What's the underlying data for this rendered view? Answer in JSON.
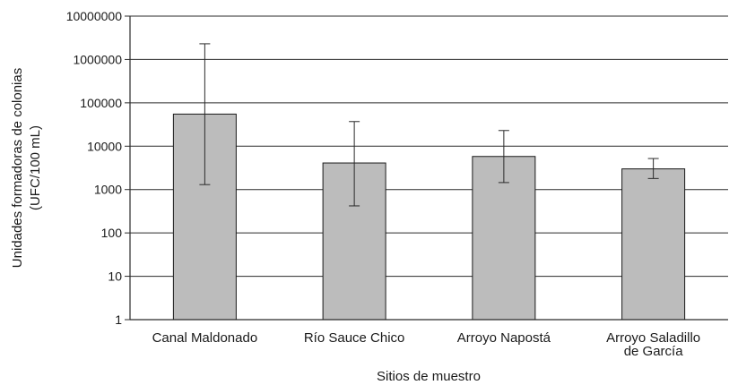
{
  "chart_data": {
    "type": "bar",
    "title": "",
    "xlabel": "Sitios de muestro",
    "ylabel_lines": [
      "Unidades formadoras de colonias",
      "(UFC/100 mL)"
    ],
    "yscale": "log",
    "ylim": [
      1,
      10000000
    ],
    "yticks": [
      1,
      10,
      100,
      1000,
      10000,
      100000,
      1000000,
      10000000
    ],
    "ytick_labels": [
      "1",
      "10",
      "100",
      "1000",
      "10000",
      "100000",
      "1000000",
      "10000000"
    ],
    "grid": "horizontal",
    "legend": "none",
    "bar_color": "#bcbcbc",
    "bar_edge_color": "#1a1a1a",
    "categories": [
      {
        "lines": [
          "Canal Maldonado"
        ],
        "value": 55000,
        "err_low": 1300,
        "err_high": 2300000
      },
      {
        "lines": [
          "Río Sauce Chico"
        ],
        "value": 4100,
        "err_low": 420,
        "err_high": 37000
      },
      {
        "lines": [
          "Arroyo Napostá"
        ],
        "value": 5800,
        "err_low": 1450,
        "err_high": 23000
      },
      {
        "lines": [
          "Arroyo Saladillo",
          "de García"
        ],
        "value": 3000,
        "err_low": 1800,
        "err_high": 5200
      }
    ]
  }
}
